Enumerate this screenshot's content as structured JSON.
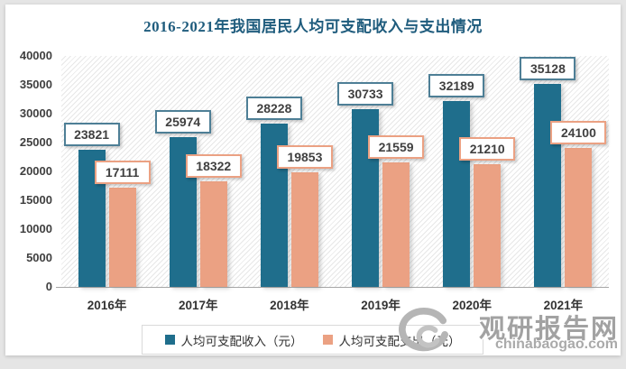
{
  "title": "2016-2021年我国居民人均可支配收入与支出情况",
  "accent_colors": {
    "income": "#1f6e8c",
    "expense": "#eba183",
    "title_text": "#1f5c7d",
    "watermark_gray": "#a2a2a2"
  },
  "chart_data": {
    "type": "bar",
    "title": "2016-2021年我国居民人均可支配收入与支出情况",
    "categories": [
      "2016年",
      "2017年",
      "2018年",
      "2019年",
      "2020年",
      "2021年"
    ],
    "series": [
      {
        "name": "人均可支配收入（元）",
        "color": "#1f6e8c",
        "values": [
          23821,
          25974,
          28228,
          30733,
          32189,
          35128
        ]
      },
      {
        "name": "人均可支配支出（元）",
        "color": "#eba183",
        "values": [
          17111,
          18322,
          19853,
          21559,
          21210,
          24100
        ]
      }
    ],
    "xlabel": "",
    "ylabel": "",
    "ylim": [
      0,
      40000
    ],
    "yticks": [
      40000,
      35000,
      30000,
      25000,
      20000,
      15000,
      10000,
      5000,
      0
    ],
    "grid": false,
    "legend_position": "bottom",
    "plot_background": "diagonal-hatch",
    "data_labels": "boxed above bars"
  },
  "watermark": {
    "name": "观研报告网",
    "domain": "chinabaogao.com",
    "logo": "swirl-g-icon"
  }
}
